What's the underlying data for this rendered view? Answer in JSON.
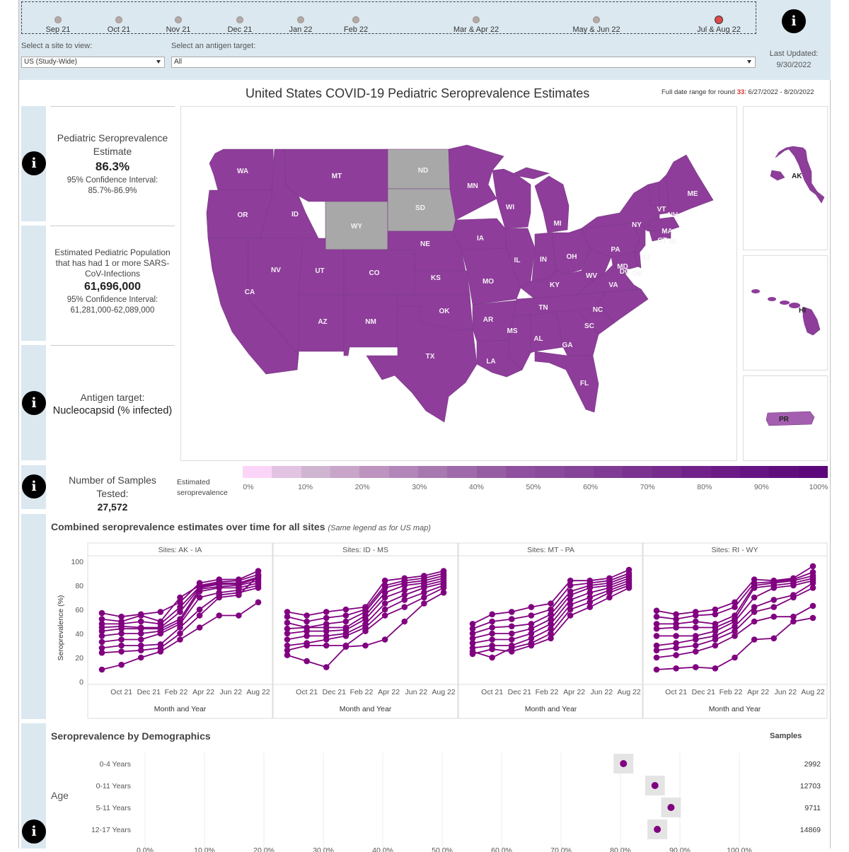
{
  "timeline": {
    "items": [
      "Sep 21",
      "Oct 21",
      "Nov 21",
      "Dec 21",
      "Jan 22",
      "Feb 22",
      "Mar & Apr 22",
      "May & Jun 22",
      "Jul & Aug 22"
    ],
    "selected": "Jul & Aug 22"
  },
  "filters": {
    "site_label": "Select a site to view:",
    "site_value": "US (Study-Wide)",
    "antigen_label": "Select an antigen target:",
    "antigen_value": "All"
  },
  "updated": {
    "label": "Last Updated:",
    "date": "9/30/2022"
  },
  "title": {
    "prefix": "United States",
    "main": "COVID-19 Pediatric Seroprevalence Estimates"
  },
  "date_range": {
    "label": "Full date range for round",
    "round": "33",
    "range": ": 6/27/2022 - 8/20/2022"
  },
  "info_icon_glyph": "i",
  "estimate": {
    "label": "Pediatric Seroprevalence Estimate",
    "value": "86.3%",
    "ci_label": "95% Confidence Interval:",
    "ci": "85.7%-86.9%"
  },
  "population": {
    "label": "Estimated Pediatric Population that has had 1 or more SARS-CoV-Infections",
    "value": "61,696,000",
    "ci_label": "95% Confidence Interval:",
    "ci": "61,281,000-62,089,000"
  },
  "antigen": {
    "label": "Antigen target:",
    "value": "Nucleocapsid (% infected)"
  },
  "samples": {
    "label": "Number of Samples Tested:",
    "value": "27,572"
  },
  "legend": {
    "title_1": "Estimated",
    "title_2": "seroprevalence",
    "ticks": [
      "0%",
      "10%",
      "20%",
      "30%",
      "40%",
      "50%",
      "60%",
      "70%",
      "80%",
      "90%",
      "100%"
    ]
  },
  "map": {
    "states": [
      {
        "code": "WA"
      },
      {
        "code": "OR"
      },
      {
        "code": "CA"
      },
      {
        "code": "ID"
      },
      {
        "code": "NV"
      },
      {
        "code": "MT"
      },
      {
        "code": "WY"
      },
      {
        "code": "UT"
      },
      {
        "code": "AZ"
      },
      {
        "code": "CO"
      },
      {
        "code": "NM"
      },
      {
        "code": "ND"
      },
      {
        "code": "SD"
      },
      {
        "code": "NE"
      },
      {
        "code": "KS"
      },
      {
        "code": "OK"
      },
      {
        "code": "TX"
      },
      {
        "code": "MN"
      },
      {
        "code": "IA"
      },
      {
        "code": "MO"
      },
      {
        "code": "AR"
      },
      {
        "code": "LA"
      },
      {
        "code": "WI"
      },
      {
        "code": "IL"
      },
      {
        "code": "MI"
      },
      {
        "code": "IN"
      },
      {
        "code": "OH"
      },
      {
        "code": "KY"
      },
      {
        "code": "TN"
      },
      {
        "code": "MS"
      },
      {
        "code": "AL"
      },
      {
        "code": "GA"
      },
      {
        "code": "FL"
      },
      {
        "code": "SC"
      },
      {
        "code": "NC"
      },
      {
        "code": "VA"
      },
      {
        "code": "WV"
      },
      {
        "code": "PA"
      },
      {
        "code": "NY"
      },
      {
        "code": "MD"
      },
      {
        "code": "DC"
      },
      {
        "code": "DE"
      },
      {
        "code": "NJ"
      },
      {
        "code": "CT"
      },
      {
        "code": "RI"
      },
      {
        "code": "MA"
      },
      {
        "code": "VT"
      },
      {
        "code": "NH"
      },
      {
        "code": "ME"
      }
    ],
    "insets": [
      "AK",
      "HI",
      "PR"
    ]
  },
  "colors": {
    "header_bg": "#dbe8f0",
    "state_fill": "#8e3d9a",
    "no_data": "#a8a8a8",
    "line": "#800080",
    "legend_ramp": [
      "#fbd5f7",
      "#e2c3e2",
      "#d0b5d0",
      "#c8a5c9",
      "#bd94c0",
      "#b286b8",
      "#a878b0",
      "#9f6aaa",
      "#965da3",
      "#8f509f",
      "#8a4b9c",
      "#854498",
      "#803c94",
      "#7b3390",
      "#762b8d",
      "#71228a",
      "#6c1b86",
      "#661483",
      "#610e7d",
      "#5c087a"
    ]
  },
  "chart_data": {
    "type": "line",
    "title": "Combined seroprevalence estimates over time for all sites",
    "note": "(Same legend as for US map)",
    "ylabel": "Seroprevalence (%)",
    "xlabel": "Month and Year",
    "ylim": [
      0,
      100
    ],
    "yticks": [
      "0",
      "20",
      "40",
      "60",
      "80",
      "100"
    ],
    "x_categories": [
      "Sep 21",
      "Oct 21",
      "Nov 21",
      "Dec 21",
      "Jan 22",
      "Feb 22",
      "Apr 22",
      "Jun 22",
      "Aug 22"
    ],
    "xtick_labels": [
      "Oct 21",
      "Dec 21",
      "Feb 22",
      "Apr 22",
      "Jun 22",
      "Aug 22"
    ],
    "panels": [
      {
        "title": "Sites: AK - IA",
        "series": [
          [
            57,
            54,
            56,
            58,
            66,
            82,
            85,
            85,
            92
          ],
          [
            52,
            50,
            55,
            50,
            70,
            80,
            83,
            84,
            89
          ],
          [
            48,
            48,
            50,
            48,
            62,
            79,
            82,
            82,
            87
          ],
          [
            45,
            46,
            45,
            45,
            58,
            78,
            81,
            81,
            86
          ],
          [
            42,
            44,
            44,
            44,
            52,
            77,
            79,
            80,
            84
          ],
          [
            38,
            40,
            40,
            42,
            50,
            75,
            78,
            78,
            82
          ],
          [
            33,
            35,
            35,
            40,
            48,
            70,
            74,
            76,
            80
          ],
          [
            28,
            30,
            30,
            31,
            45,
            60,
            72,
            74,
            78
          ],
          [
            24,
            25,
            26,
            28,
            40,
            55,
            70,
            72,
            88
          ],
          [
            10,
            14,
            20,
            25,
            35,
            45,
            55,
            55,
            66
          ]
        ]
      },
      {
        "title": "Sites: ID - MS",
        "series": [
          [
            58,
            55,
            58,
            60,
            62,
            84,
            86,
            88,
            92
          ],
          [
            54,
            50,
            53,
            55,
            60,
            80,
            84,
            86,
            90
          ],
          [
            49,
            45,
            48,
            50,
            58,
            78,
            82,
            84,
            88
          ],
          [
            44,
            45,
            45,
            45,
            55,
            74,
            80,
            82,
            86
          ],
          [
            40,
            42,
            42,
            43,
            52,
            70,
            76,
            80,
            84
          ],
          [
            35,
            38,
            38,
            40,
            48,
            65,
            72,
            78,
            82
          ],
          [
            30,
            32,
            35,
            38,
            45,
            60,
            68,
            74,
            80
          ],
          [
            26,
            30,
            30,
            30,
            42,
            55,
            62,
            70,
            78
          ],
          [
            22,
            17,
            12,
            29,
            30,
            35,
            50,
            65,
            74
          ]
        ]
      },
      {
        "title": "Sites: MT - PA",
        "series": [
          [
            48,
            56,
            58,
            62,
            65,
            84,
            84,
            86,
            93
          ],
          [
            44,
            50,
            52,
            55,
            60,
            80,
            82,
            84,
            90
          ],
          [
            40,
            45,
            46,
            48,
            56,
            75,
            80,
            82,
            88
          ],
          [
            36,
            40,
            40,
            44,
            52,
            72,
            78,
            80,
            86
          ],
          [
            32,
            35,
            35,
            40,
            48,
            68,
            74,
            78,
            84
          ],
          [
            28,
            30,
            30,
            36,
            44,
            64,
            70,
            76,
            82
          ],
          [
            25,
            20,
            28,
            32,
            40,
            60,
            66,
            74,
            80
          ],
          [
            23,
            27,
            25,
            30,
            36,
            55,
            62,
            70,
            78
          ]
        ]
      },
      {
        "title": "Sites: RI - WY",
        "series": [
          [
            59,
            56,
            58,
            60,
            66,
            85,
            84,
            86,
            96
          ],
          [
            54,
            52,
            55,
            56,
            62,
            82,
            83,
            85,
            91
          ],
          [
            48,
            48,
            50,
            48,
            55,
            80,
            82,
            84,
            88
          ],
          [
            44,
            45,
            45,
            45,
            52,
            78,
            80,
            82,
            86
          ],
          [
            38,
            38,
            38,
            42,
            50,
            70,
            78,
            80,
            84
          ],
          [
            30,
            32,
            35,
            38,
            46,
            62,
            68,
            72,
            82
          ],
          [
            26,
            28,
            30,
            35,
            42,
            58,
            62,
            70,
            78
          ],
          [
            20,
            22,
            25,
            30,
            38,
            50,
            54,
            54,
            63
          ],
          [
            10,
            11,
            12,
            11,
            20,
            35,
            36,
            50,
            53
          ]
        ]
      }
    ]
  },
  "demographics": {
    "title": "Seroprevalence by Demographics",
    "samples_label": "Samples",
    "group_label": "Age",
    "rows": [
      {
        "label": "0-4 Years",
        "value": 80.5,
        "samples": "2992"
      },
      {
        "label": "0-11 Years",
        "value": 85.8,
        "samples": "12703"
      },
      {
        "label": "5-11 Years",
        "value": 88.5,
        "samples": "9711"
      },
      {
        "label": "12-17 Years",
        "value": 86.2,
        "samples": "14869"
      }
    ],
    "xticks": [
      "0.0%",
      "10.0%",
      "20.0%",
      "30.0%",
      "40.0%",
      "50.0%",
      "60.0%",
      "70.0%",
      "80.0%",
      "90.0%",
      "100.0%"
    ]
  }
}
